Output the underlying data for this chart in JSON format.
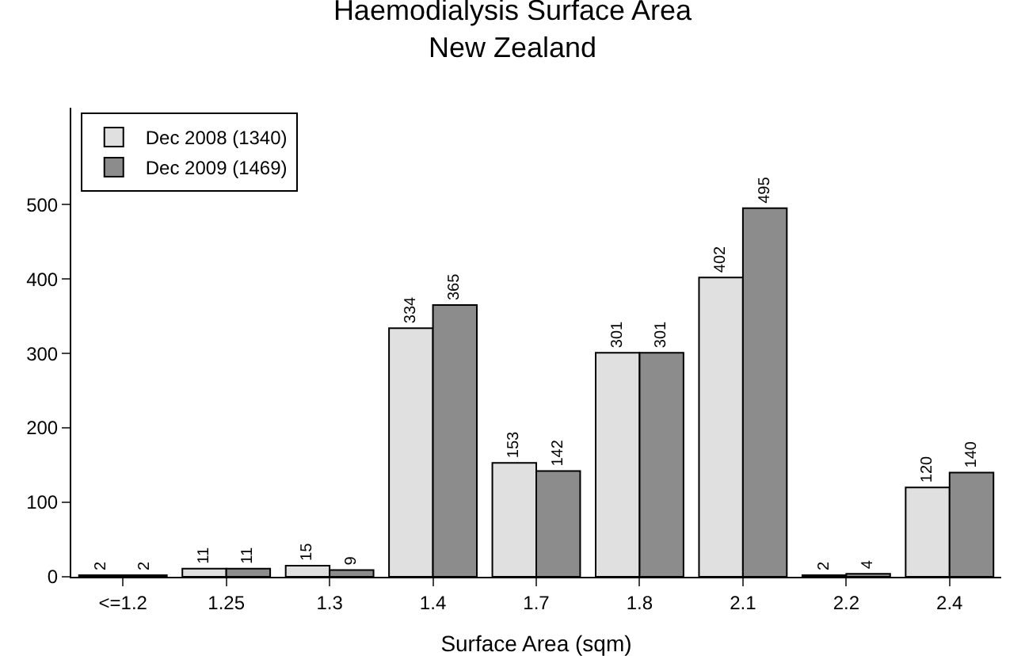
{
  "chart_data": {
    "type": "bar",
    "title": "Haemodialysis Surface Area",
    "subtitle": "New Zealand",
    "xlabel": "Surface Area (sqm)",
    "categories": [
      "<=1.2",
      "1.25",
      "1.3",
      "1.4",
      "1.7",
      "1.8",
      "2.1",
      "2.2",
      "2.4"
    ],
    "series": [
      {
        "name": "Dec 2008 (1340)",
        "color": "#e0e0e0",
        "values": [
          2,
          11,
          15,
          334,
          153,
          301,
          402,
          2,
          120
        ]
      },
      {
        "name": "Dec 2009 (1469)",
        "color": "#8c8c8c",
        "values": [
          2,
          11,
          9,
          365,
          142,
          301,
          495,
          4,
          140
        ]
      }
    ],
    "ylim": [
      0,
      630
    ],
    "yticks": [
      0,
      100,
      200,
      300,
      400,
      500
    ],
    "grid": false,
    "legend": "top left",
    "data_labels": true
  }
}
